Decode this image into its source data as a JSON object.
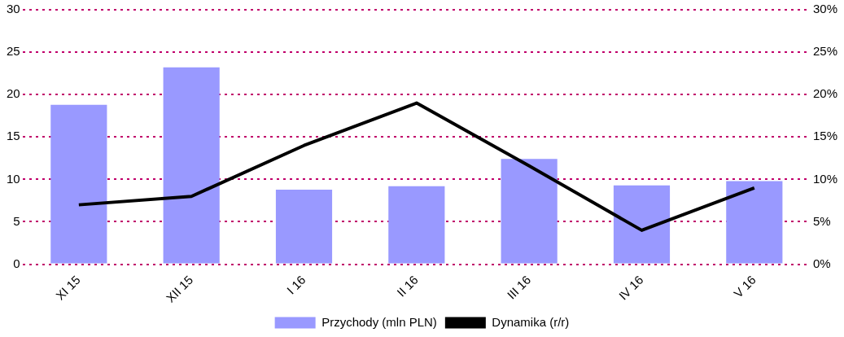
{
  "chart_data": {
    "type": "bar",
    "categories": [
      "XI 15",
      "XII 15",
      "I 16",
      "II 16",
      "III 16",
      "IV 16",
      "V 16"
    ],
    "series": [
      {
        "name": "Przychody (mln PLN)",
        "color": "#9999ff",
        "values": [
          18.8,
          23.2,
          8.8,
          9.2,
          12.4,
          9.3,
          9.8
        ]
      },
      {
        "name": "Dynamika (r/r)",
        "type": "line",
        "axis": "y2",
        "color": "#000000",
        "values": [
          7,
          8,
          14,
          19,
          11.6,
          4,
          9
        ]
      }
    ],
    "ylim": [
      0,
      30
    ],
    "yticks": [
      0,
      5,
      10,
      15,
      20,
      25,
      30
    ],
    "y2lim": [
      0,
      30
    ],
    "y2ticks": [
      {
        "value": 0,
        "label": "0%"
      },
      {
        "value": 5,
        "label": "5%"
      },
      {
        "value": 10,
        "label": "10%"
      },
      {
        "value": 15,
        "label": "15%"
      },
      {
        "value": 20,
        "label": "20%"
      },
      {
        "value": 25,
        "label": "25%"
      },
      {
        "value": 30,
        "label": "30%"
      }
    ],
    "grid": "y",
    "legend": "bottom",
    "marker": "none",
    "line_style": "solid"
  }
}
